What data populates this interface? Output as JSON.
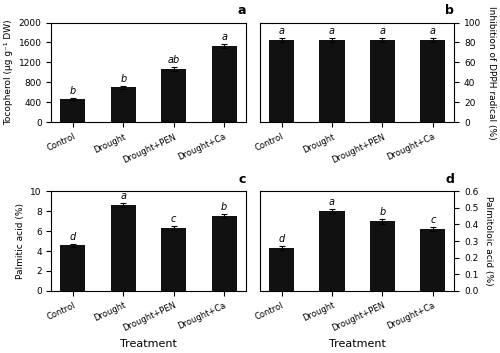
{
  "chart_data": [
    {
      "type": "bar",
      "title": "a",
      "categories": [
        "Control",
        "Drought",
        "Drought+PEN",
        "Drought+Ca"
      ],
      "values": [
        470,
        700,
        1060,
        1530
      ],
      "errors": [
        20,
        25,
        40,
        35
      ],
      "annotations": [
        "b",
        "b",
        "ab",
        "a"
      ],
      "ylabel": "Tocopherol (μg g⁻¹ DW)",
      "ylim": [
        0,
        2000
      ],
      "yticks": [
        0,
        400,
        800,
        1200,
        1600,
        2000
      ],
      "color": "#111111"
    },
    {
      "type": "bar",
      "title": "b",
      "categories": [
        "Control",
        "Drought",
        "Drought+PEN",
        "Drought+Ca"
      ],
      "values": [
        82,
        82,
        82,
        82
      ],
      "errors": [
        2,
        2,
        2,
        2
      ],
      "annotations": [
        "a",
        "a",
        "a",
        "a"
      ],
      "ylabel": "Inhibition of DPPH radical (%)",
      "ylim": [
        0,
        100
      ],
      "yticks": [
        0,
        20,
        40,
        60,
        80,
        100
      ],
      "color": "#111111"
    },
    {
      "type": "bar",
      "title": "c",
      "categories": [
        "Control",
        "Drought",
        "Drought+PEN",
        "Drought+Ca"
      ],
      "values": [
        4.6,
        8.6,
        6.3,
        7.5
      ],
      "errors": [
        0.15,
        0.18,
        0.18,
        0.18
      ],
      "annotations": [
        "d",
        "a",
        "c",
        "b"
      ],
      "ylabel": "Palmitic acid (%)",
      "xlabel": "Treatment",
      "ylim": [
        0,
        10
      ],
      "yticks": [
        0,
        2,
        4,
        6,
        8,
        10
      ],
      "color": "#111111"
    },
    {
      "type": "bar",
      "title": "d",
      "categories": [
        "Control",
        "Drought",
        "Drought+PEN",
        "Drought+Ca"
      ],
      "values": [
        0.26,
        0.48,
        0.42,
        0.37
      ],
      "errors": [
        0.012,
        0.012,
        0.015,
        0.012
      ],
      "annotations": [
        "d",
        "a",
        "b",
        "c"
      ],
      "ylabel": "Palmitoloic acid (%)",
      "xlabel": "Treatment",
      "ylim": [
        0,
        0.6
      ],
      "yticks": [
        0.0,
        0.1,
        0.2,
        0.3,
        0.4,
        0.5,
        0.6
      ],
      "color": "#111111"
    }
  ]
}
